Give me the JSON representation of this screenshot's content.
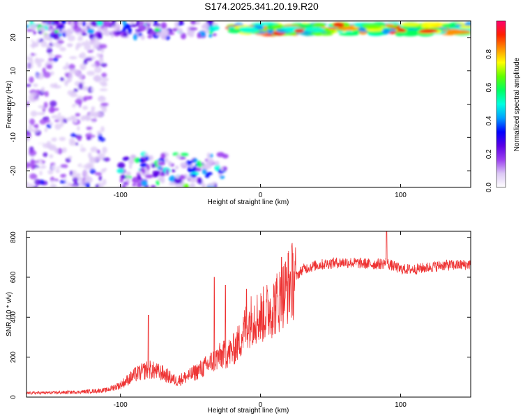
{
  "title": "S174.2025.341.20.19.R20",
  "chart_data": [
    {
      "type": "heatmap",
      "xlabel": "Height of straight line (km)",
      "ylabel": "Frequency (Hz)",
      "xlim": [
        -167,
        150
      ],
      "ylim": [
        -25,
        25
      ],
      "xticks": [
        -100,
        0,
        100
      ],
      "yticks": [
        -20,
        -10,
        0,
        10,
        20
      ],
      "colorbar": {
        "label": "Normalized spectral amplitude",
        "range": [
          0,
          1
        ],
        "ticks": [
          "0.0",
          "0.2",
          "0.4",
          "0.6",
          "0.8"
        ],
        "colors": [
          "#ffffff",
          "#dcc8f5",
          "#9b3ff0",
          "#5a00e6",
          "#0000ff",
          "#00a0ff",
          "#00ffe0",
          "#00ff60",
          "#60ff00",
          "#ffff00",
          "#ff9000",
          "#ff2000",
          "#ff0070"
        ]
      },
      "regions": [
        {
          "name": "scattered low-amplitude noise",
          "x": [
            -167,
            -110
          ],
          "y": [
            -25,
            25
          ],
          "amplitude": 0.15
        },
        {
          "name": "upper noise band",
          "x": [
            -167,
            -30
          ],
          "y": [
            20,
            25
          ],
          "amplitude": 0.3
        },
        {
          "name": "lower noise band",
          "x": [
            -100,
            -25
          ],
          "y": [
            -25,
            -15
          ],
          "amplitude": 0.3
        },
        {
          "name": "strong line near 22 Hz",
          "x": [
            -20,
            150
          ],
          "y": [
            21,
            24
          ],
          "amplitude": 0.9
        }
      ]
    },
    {
      "type": "line",
      "xlabel": "Height of straight line (km)",
      "ylabel": "SNR (10 * v/v)",
      "xlim": [
        -167,
        150
      ],
      "ylim": [
        0,
        830
      ],
      "xticks": [
        -100,
        0,
        100
      ],
      "yticks": [
        0,
        200,
        400,
        600,
        800
      ],
      "color": "#ee3333",
      "x": [
        -167,
        -150,
        -130,
        -110,
        -100,
        -90,
        -80,
        -70,
        -60,
        -50,
        -40,
        -30,
        -20,
        -15,
        -10,
        -5,
        0,
        5,
        10,
        15,
        20,
        25,
        30,
        40,
        50,
        60,
        70,
        80,
        90,
        100,
        110,
        120,
        130,
        140,
        150
      ],
      "y": [
        20,
        22,
        25,
        35,
        60,
        110,
        140,
        120,
        80,
        110,
        150,
        200,
        230,
        280,
        360,
        400,
        400,
        430,
        460,
        500,
        560,
        600,
        640,
        660,
        670,
        675,
        670,
        665,
        670,
        640,
        640,
        650,
        660,
        660,
        665
      ],
      "peaks": [
        {
          "x": -80,
          "y": 410
        },
        {
          "x": -33,
          "y": 600
        },
        {
          "x": -25,
          "y": 560
        },
        {
          "x": -10,
          "y": 540
        },
        {
          "x": 15,
          "y": 700
        },
        {
          "x": 90,
          "y": 830
        }
      ]
    }
  ]
}
